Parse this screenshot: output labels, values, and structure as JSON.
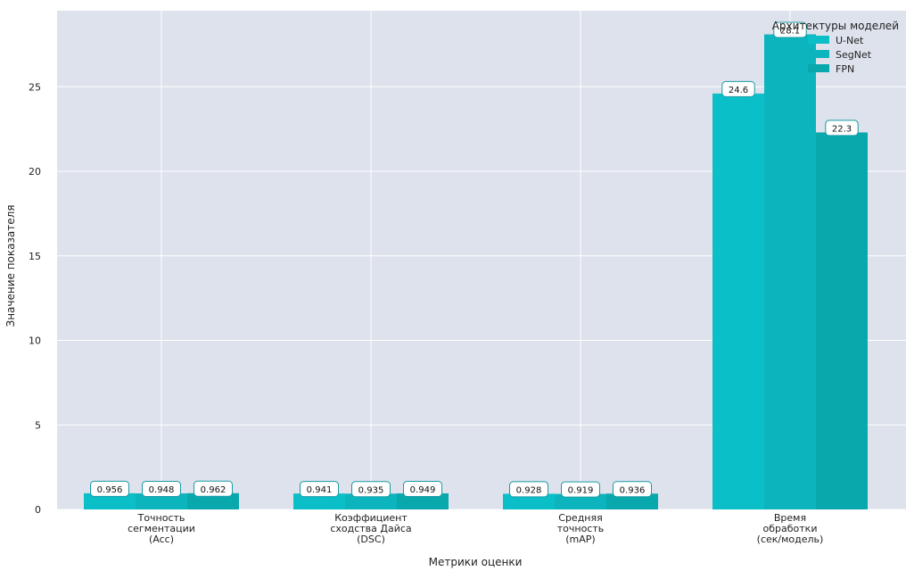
{
  "chart_data": {
    "type": "bar",
    "title": "",
    "xlabel": "Метрики оценки",
    "ylabel": "Значение показателя",
    "ylim": [
      0,
      29.5
    ],
    "yticks": [
      0,
      5,
      10,
      15,
      20,
      25
    ],
    "categories": [
      [
        "Точность",
        "сегментации",
        "(Acc)"
      ],
      [
        "Коэффициент",
        "сходства Дайса",
        "(DSC)"
      ],
      [
        "Средняя",
        "точность",
        "(mAP)"
      ],
      [
        "Время",
        "обработки",
        "(сек/модель)"
      ]
    ],
    "series": [
      {
        "name": "U-Net",
        "values": [
          0.956,
          0.941,
          0.928,
          24.6
        ],
        "labels": [
          "0.956",
          "0.941",
          "0.928",
          "24.6"
        ],
        "color": "#0bbfc9"
      },
      {
        "name": "SegNet",
        "values": [
          0.948,
          0.935,
          0.919,
          28.1
        ],
        "labels": [
          "0.948",
          "0.935",
          "0.919",
          "28.1"
        ],
        "color": "#0cb4bd"
      },
      {
        "name": "FPN",
        "values": [
          0.962,
          0.949,
          0.936,
          22.3
        ],
        "labels": [
          "0.962",
          "0.949",
          "0.936",
          "22.3"
        ],
        "color": "#08a8ad"
      }
    ],
    "legend": {
      "title": "Архитектуры моделей",
      "position": "top-right"
    },
    "grid": true,
    "background": "#dde2ec",
    "label_box_border": "#1a9aa3"
  }
}
